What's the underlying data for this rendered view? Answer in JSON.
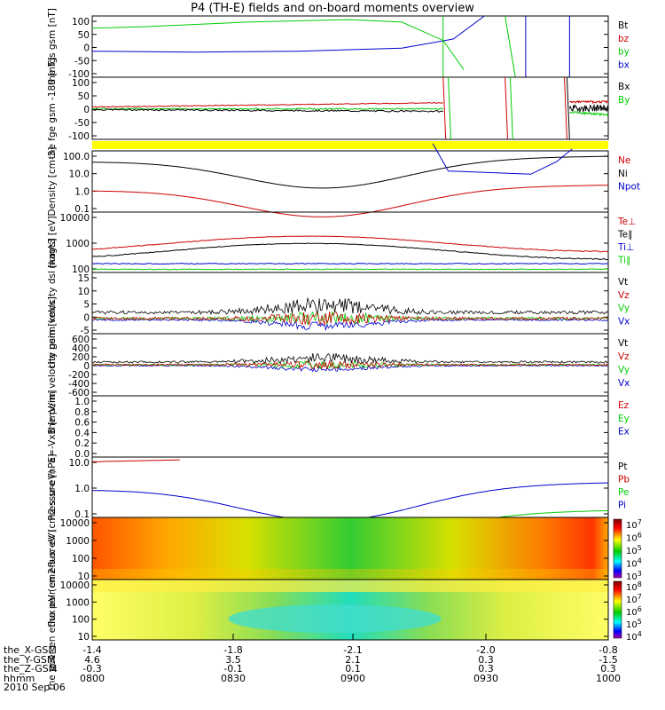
{
  "title": "P4 (TH-E) fields and on-board moments overview",
  "colors": {
    "black": "#000000",
    "red": "#cc0000",
    "green": "#00cc00",
    "blue": "#0000cc",
    "yellow": "#ffff00"
  },
  "chart_data": [
    {
      "type": "line",
      "id": "fgs",
      "ylabel": "the fgs gsm [nT]",
      "ylim": [
        -100,
        100
      ],
      "yticks": [
        "100",
        "50",
        "0",
        "-50",
        "-100"
      ],
      "legend": [
        {
          "name": "Bt",
          "color": "#000000"
        },
        {
          "name": "bz",
          "color": "#cc0000"
        },
        {
          "name": "by",
          "color": "#00cc00"
        },
        {
          "name": "bx",
          "color": "#0000cc"
        }
      ],
      "series": [
        {
          "name": "by",
          "x": [
            0,
            0.1,
            0.3,
            0.5,
            0.6,
            0.68,
            0.72
          ],
          "y": [
            60,
            65,
            80,
            88,
            80,
            20,
            -75
          ]
        },
        {
          "name": "bx",
          "x": [
            0,
            0.2,
            0.4,
            0.6,
            0.7,
            0.76
          ],
          "y": [
            -15,
            -18,
            -15,
            -5,
            25,
            100
          ]
        }
      ]
    },
    {
      "type": "line",
      "id": "fge",
      "ylabel": "the fge gsm -189 [nT]",
      "ylim": [
        -120,
        120
      ],
      "yticks": [
        "100",
        "50",
        "0",
        "-50",
        "-100"
      ],
      "legend": [
        {
          "name": "Bx",
          "color": "#000000"
        },
        {
          "name": "By",
          "color": "#00cc00"
        }
      ],
      "series": []
    },
    {
      "type": "line",
      "id": "density",
      "ylabel": "Density [cm-3]",
      "yscale": "log",
      "yticks": [
        "100.0",
        "10.0",
        "1.0",
        "0.1"
      ],
      "legend": [
        {
          "name": "Ne",
          "color": "#cc0000"
        },
        {
          "name": "Ni",
          "color": "#000000"
        },
        {
          "name": "Npot",
          "color": "#0000cc"
        }
      ],
      "series": []
    },
    {
      "type": "line",
      "id": "temperature",
      "ylabel": "magt3 [eV]",
      "yscale": "log",
      "yticks": [
        "10000",
        "1000",
        "100"
      ],
      "legend": [
        {
          "name": "Te⊥",
          "color": "#cc0000"
        },
        {
          "name": "Te∥",
          "color": "#000000"
        },
        {
          "name": "Ti⊥",
          "color": "#0000cc"
        },
        {
          "name": "Ti∥",
          "color": "#00cc00"
        }
      ],
      "series": []
    },
    {
      "type": "line",
      "id": "velocity_dsl",
      "ylabel": "the peim velocity dsl [km/s]",
      "ylim": [
        -5,
        15
      ],
      "yticks": [
        "15",
        "10",
        "5",
        "0",
        "-5"
      ],
      "legend": [
        {
          "name": "Vt",
          "color": "#000000"
        },
        {
          "name": "Vz",
          "color": "#cc0000"
        },
        {
          "name": "Vy",
          "color": "#00cc00"
        },
        {
          "name": "Vx",
          "color": "#0000cc"
        }
      ],
      "series": []
    },
    {
      "type": "line",
      "id": "velocity_gsm",
      "ylabel": "the peim velocity gsm [km/s]",
      "ylim": [
        -600,
        600
      ],
      "yticks": [
        "600",
        "400",
        "200",
        "0",
        "-200",
        "-400",
        "-600"
      ],
      "legend": [
        {
          "name": "Vt",
          "color": "#000000"
        },
        {
          "name": "Vz",
          "color": "#cc0000"
        },
        {
          "name": "Vy",
          "color": "#00cc00"
        },
        {
          "name": "Vx",
          "color": "#0000cc"
        }
      ],
      "series": []
    },
    {
      "type": "line",
      "id": "efield",
      "ylabel": "E=-VxB [mV/m]",
      "ylim": [
        0,
        1
      ],
      "yticks": [
        "1.0",
        "0.8",
        "0.6",
        "0.4",
        "0.2",
        "0.0"
      ],
      "legend": [
        {
          "name": "Ez",
          "color": "#cc0000"
        },
        {
          "name": "Ey",
          "color": "#00cc00"
        },
        {
          "name": "Ex",
          "color": "#0000cc"
        }
      ],
      "series": []
    },
    {
      "type": "line",
      "id": "pressure",
      "ylabel": "Pressure [nPa]",
      "yscale": "log",
      "yticks": [
        "10.0",
        "1.0",
        "0.1"
      ],
      "legend": [
        {
          "name": "Pt",
          "color": "#000000"
        },
        {
          "name": "Pb",
          "color": "#cc0000"
        },
        {
          "name": "Pe",
          "color": "#00cc00"
        },
        {
          "name": "Pi",
          "color": "#0000cc"
        }
      ],
      "series": []
    },
    {
      "type": "heatmap",
      "id": "ion_spectrogram",
      "ylabel": "the peir en eflux eV (cm2-s-sr-eV)",
      "yticks": [
        "10000",
        "1000",
        "100",
        "10"
      ],
      "colorbar_ticks": [
        "10^7",
        "10^6",
        "10^5",
        "10^4",
        "10^3"
      ]
    },
    {
      "type": "heatmap",
      "id": "electron_spectrogram",
      "ylabel": "the peer en eflux eV (cm2-s-sr-eV)",
      "yticks": [
        "10000",
        "1000",
        "100",
        "10"
      ],
      "colorbar_ticks": [
        "10^8",
        "10^7",
        "10^6",
        "10^5",
        "10^4"
      ]
    }
  ],
  "xaxis": {
    "rows": [
      {
        "label": "the_X-GSM",
        "values": [
          "-1.4",
          "-1.8",
          "-2.1",
          "-2.0",
          "-0.8"
        ]
      },
      {
        "label": "the_Y-GSM",
        "values": [
          "4.6",
          "3.5",
          "2.1",
          "0.3",
          "-1.5"
        ]
      },
      {
        "label": "the_Z-GSM",
        "values": [
          "-0.3",
          "-0.1",
          "0.1",
          "0.3",
          "0.3"
        ]
      },
      {
        "label": "hhmm",
        "values": [
          "0800",
          "0830",
          "0900",
          "0930",
          "1000"
        ]
      }
    ],
    "date": "2010 Sep 06"
  }
}
